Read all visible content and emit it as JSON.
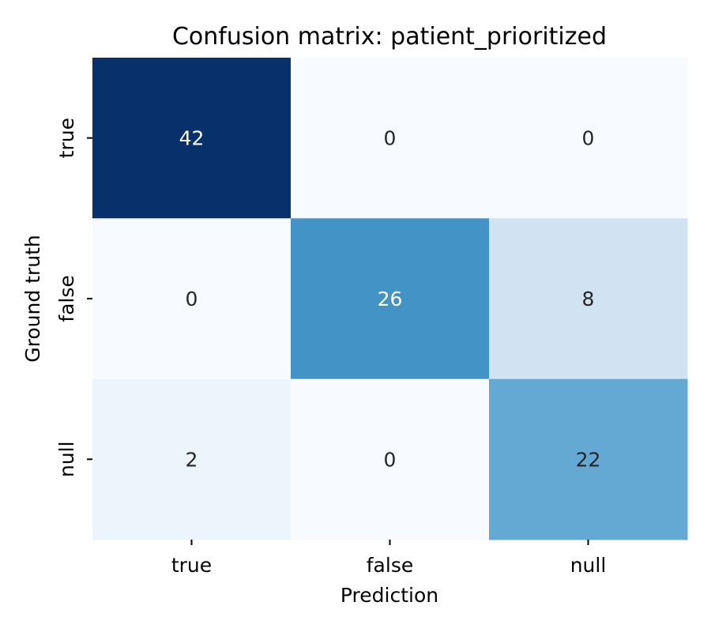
{
  "chart_data": {
    "type": "heatmap",
    "title": "Confusion matrix: patient_prioritized",
    "xlabel": "Prediction",
    "ylabel": "Ground truth",
    "x_categories": [
      "true",
      "false",
      "null"
    ],
    "y_categories": [
      "true",
      "false",
      "null"
    ],
    "values": [
      [
        42,
        0,
        0
      ],
      [
        0,
        26,
        8
      ],
      [
        2,
        0,
        22
      ]
    ],
    "colormap": "Blues",
    "value_range": [
      0,
      42
    ],
    "colorbar": false,
    "grid": false
  }
}
